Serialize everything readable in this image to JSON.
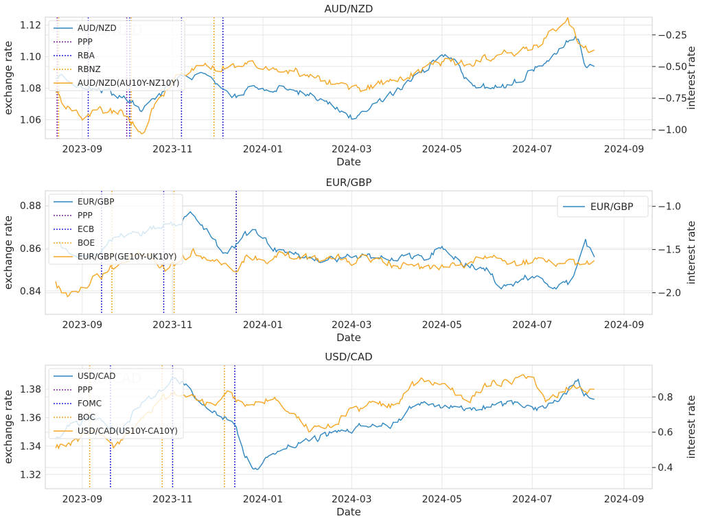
{
  "chart_data": [
    {
      "type": "line",
      "title": "AUD/NZD",
      "xlabel": "Date",
      "ylabel": "exchange rate",
      "ylabel_right": "interest rate",
      "xticks": [
        "2023-09",
        "2023-11",
        "2024-01",
        "2024-03",
        "2024-05",
        "2024-07",
        "2024-09"
      ],
      "yticks_left": [
        "1.06",
        "1.08",
        "1.10",
        "1.12"
      ],
      "yticks_right": [
        "−1.00",
        "−0.75",
        "−0.50",
        "−0.25"
      ],
      "ylim_left": [
        1.048,
        1.125
      ],
      "ylim_right": [
        -1.07,
        -0.11
      ],
      "watermark": "AUD/NZD",
      "grid": true,
      "legend": {
        "position": "top-left",
        "entries": [
          "AUD/NZD",
          "PPP",
          "RBA",
          "RBNZ",
          "AUD/NZD(AU10Y-NZ10Y)"
        ]
      },
      "colors": {
        "fx": "#2e86c1",
        "rate": "#f5a623",
        "bank1": "#1f1fd6",
        "bank2": "#f5a623",
        "ppp": "#7b1fa2"
      },
      "bank1_dates": [
        "2023-09-05",
        "2023-10-03",
        "2023-11-07",
        "2023-12-05"
      ],
      "bank2_dates": [
        "2023-08-16",
        "2023-10-04",
        "2023-11-29"
      ],
      "ppp_dates": [
        "2023-08-15",
        "2023-10-01"
      ],
      "fx_keys": [
        [
          "2023-08-14",
          1.087
        ],
        [
          "2023-08-28",
          1.083
        ],
        [
          "2023-09-10",
          1.08
        ],
        [
          "2023-09-25",
          1.075
        ],
        [
          "2023-10-05",
          1.07
        ],
        [
          "2023-10-12",
          1.066
        ],
        [
          "2023-10-25",
          1.077
        ],
        [
          "2023-11-05",
          1.086
        ],
        [
          "2023-11-20",
          1.087
        ],
        [
          "2023-12-01",
          1.082
        ],
        [
          "2023-12-10",
          1.072
        ],
        [
          "2023-12-25",
          1.08
        ],
        [
          "2024-01-15",
          1.08
        ],
        [
          "2024-02-01",
          1.076
        ],
        [
          "2024-02-15",
          1.07
        ],
        [
          "2024-03-01",
          1.062
        ],
        [
          "2024-03-15",
          1.068
        ],
        [
          "2024-04-01",
          1.08
        ],
        [
          "2024-04-15",
          1.088
        ],
        [
          "2024-05-01",
          1.101
        ],
        [
          "2024-05-10",
          1.097
        ],
        [
          "2024-05-20",
          1.082
        ],
        [
          "2024-06-05",
          1.08
        ],
        [
          "2024-06-15",
          1.082
        ],
        [
          "2024-06-25",
          1.087
        ],
        [
          "2024-07-10",
          1.097
        ],
        [
          "2024-07-25",
          1.11
        ],
        [
          "2024-08-01",
          1.112
        ],
        [
          "2024-08-05",
          1.095
        ],
        [
          "2024-08-12",
          1.094
        ]
      ],
      "rate_keys": [
        [
          "2023-08-14",
          -0.7
        ],
        [
          "2023-08-20",
          -0.82
        ],
        [
          "2023-09-01",
          -0.9
        ],
        [
          "2023-09-20",
          -0.85
        ],
        [
          "2023-10-05",
          -0.92
        ],
        [
          "2023-10-12",
          -1.02
        ],
        [
          "2023-10-20",
          -0.8
        ],
        [
          "2023-11-05",
          -0.55
        ],
        [
          "2023-11-20",
          -0.48
        ],
        [
          "2023-12-01",
          -0.52
        ],
        [
          "2023-12-15",
          -0.48
        ],
        [
          "2024-01-10",
          -0.5
        ],
        [
          "2024-02-01",
          -0.56
        ],
        [
          "2024-02-20",
          -0.65
        ],
        [
          "2024-03-10",
          -0.68
        ],
        [
          "2024-04-01",
          -0.6
        ],
        [
          "2024-04-20",
          -0.52
        ],
        [
          "2024-05-05",
          -0.45
        ],
        [
          "2024-05-20",
          -0.48
        ],
        [
          "2024-06-05",
          -0.42
        ],
        [
          "2024-06-20",
          -0.38
        ],
        [
          "2024-07-05",
          -0.32
        ],
        [
          "2024-07-15",
          -0.2
        ],
        [
          "2024-07-25",
          -0.15
        ],
        [
          "2024-08-01",
          -0.28
        ],
        [
          "2024-08-12",
          -0.38
        ]
      ]
    },
    {
      "type": "line",
      "title": "EUR/GBP",
      "xlabel": "Date",
      "ylabel": "exchange rate",
      "ylabel_right": "interest rate",
      "xticks": [
        "2023-09",
        "2023-11",
        "2024-01",
        "2024-03",
        "2024-05",
        "2024-07",
        "2024-09"
      ],
      "yticks_left": [
        "0.84",
        "0.86",
        "0.88"
      ],
      "yticks_right": [
        "−2.0",
        "−1.5",
        "−1.0"
      ],
      "ylim_left": [
        0.829,
        0.887
      ],
      "ylim_right": [
        -2.25,
        -0.82
      ],
      "grid": true,
      "legend": {
        "position": "top-left",
        "entries": [
          "EUR/GBP",
          "PPP",
          "ECB",
          "BOE",
          "EUR/GBP(GE10Y-UK10Y)"
        ]
      },
      "legend2": {
        "position": "top-right",
        "entries": [
          "EUR/GBP"
        ]
      },
      "colors": {
        "fx": "#2e86c1",
        "rate": "#f5a623",
        "bank1": "#1f1fd6",
        "bank2": "#f5a623",
        "ppp": "#7b1fa2"
      },
      "bank1_dates": [
        "2023-09-14",
        "2023-10-26",
        "2023-12-14"
      ],
      "bank2_dates": [
        "2023-09-21",
        "2023-11-02",
        "2023-12-14"
      ],
      "ppp_dates": [],
      "fx_keys": [
        [
          "2023-08-14",
          0.862
        ],
        [
          "2023-08-25",
          0.857
        ],
        [
          "2023-09-10",
          0.856
        ],
        [
          "2023-09-25",
          0.866
        ],
        [
          "2023-10-10",
          0.867
        ],
        [
          "2023-10-25",
          0.871
        ],
        [
          "2023-11-05",
          0.872
        ],
        [
          "2023-11-15",
          0.876
        ],
        [
          "2023-11-25",
          0.868
        ],
        [
          "2023-12-05",
          0.856
        ],
        [
          "2023-12-15",
          0.863
        ],
        [
          "2023-12-25",
          0.868
        ],
        [
          "2024-01-10",
          0.859
        ],
        [
          "2024-02-01",
          0.855
        ],
        [
          "2024-03-01",
          0.856
        ],
        [
          "2024-04-01",
          0.856
        ],
        [
          "2024-04-20",
          0.856
        ],
        [
          "2024-05-01",
          0.861
        ],
        [
          "2024-05-15",
          0.853
        ],
        [
          "2024-06-01",
          0.85
        ],
        [
          "2024-06-10",
          0.842
        ],
        [
          "2024-06-25",
          0.846
        ],
        [
          "2024-07-05",
          0.848
        ],
        [
          "2024-07-15",
          0.842
        ],
        [
          "2024-07-25",
          0.843
        ],
        [
          "2024-08-01",
          0.852
        ],
        [
          "2024-08-06",
          0.862
        ],
        [
          "2024-08-12",
          0.856
        ]
      ],
      "rate_keys": [
        [
          "2023-08-14",
          -1.9
        ],
        [
          "2023-08-20",
          -2.05
        ],
        [
          "2023-09-05",
          -1.9
        ],
        [
          "2023-09-25",
          -1.65
        ],
        [
          "2023-10-15",
          -1.55
        ],
        [
          "2023-10-28",
          -1.75
        ],
        [
          "2023-11-15",
          -1.5
        ],
        [
          "2023-12-01",
          -1.68
        ],
        [
          "2023-12-10",
          -1.75
        ],
        [
          "2023-12-20",
          -1.6
        ],
        [
          "2024-01-15",
          -1.58
        ],
        [
          "2024-02-15",
          -1.62
        ],
        [
          "2024-03-15",
          -1.62
        ],
        [
          "2024-04-10",
          -1.7
        ],
        [
          "2024-05-01",
          -1.72
        ],
        [
          "2024-06-01",
          -1.62
        ],
        [
          "2024-06-20",
          -1.65
        ],
        [
          "2024-07-10",
          -1.62
        ],
        [
          "2024-07-25",
          -1.68
        ],
        [
          "2024-08-12",
          -1.65
        ]
      ]
    },
    {
      "type": "line",
      "title": "USD/CAD",
      "xlabel": "Date",
      "ylabel": "exchange rate",
      "ylabel_right": "interest rate",
      "xticks": [
        "2023-09",
        "2023-11",
        "2024-01",
        "2024-03",
        "2024-05",
        "2024-07",
        "2024-09"
      ],
      "yticks_left": [
        "1.32",
        "1.34",
        "1.36",
        "1.38"
      ],
      "yticks_right": [
        "0.4",
        "0.6",
        "0.8"
      ],
      "ylim_left": [
        1.31,
        1.397
      ],
      "ylim_right": [
        0.28,
        0.98
      ],
      "watermark": "USD/CAD",
      "grid": true,
      "legend": {
        "position": "top-left",
        "entries": [
          "USD/CAD",
          "PPP",
          "FOMC",
          "BOC",
          "USD/CAD(US10Y-CA10Y)"
        ]
      },
      "colors": {
        "fx": "#2e86c1",
        "rate": "#f5a623",
        "bank1": "#1f1fd6",
        "bank2": "#f5a623",
        "ppp": "#7b1fa2"
      },
      "bank1_dates": [
        "2023-09-20",
        "2023-11-01",
        "2023-12-13"
      ],
      "bank2_dates": [
        "2023-09-06",
        "2023-10-25",
        "2023-12-06"
      ],
      "ppp_dates": [],
      "fx_keys": [
        [
          "2023-08-14",
          1.345
        ],
        [
          "2023-08-25",
          1.355
        ],
        [
          "2023-09-10",
          1.36
        ],
        [
          "2023-09-25",
          1.35
        ],
        [
          "2023-10-10",
          1.368
        ],
        [
          "2023-10-25",
          1.38
        ],
        [
          "2023-11-01",
          1.388
        ],
        [
          "2023-11-10",
          1.382
        ],
        [
          "2023-11-25",
          1.368
        ],
        [
          "2023-12-05",
          1.36
        ],
        [
          "2023-12-12",
          1.357
        ],
        [
          "2023-12-20",
          1.335
        ],
        [
          "2023-12-28",
          1.322
        ],
        [
          "2024-01-10",
          1.338
        ],
        [
          "2024-02-01",
          1.344
        ],
        [
          "2024-02-20",
          1.35
        ],
        [
          "2024-03-10",
          1.355
        ],
        [
          "2024-04-01",
          1.356
        ],
        [
          "2024-04-15",
          1.372
        ],
        [
          "2024-05-01",
          1.368
        ],
        [
          "2024-05-15",
          1.365
        ],
        [
          "2024-06-01",
          1.368
        ],
        [
          "2024-06-20",
          1.37
        ],
        [
          "2024-07-05",
          1.367
        ],
        [
          "2024-07-20",
          1.375
        ],
        [
          "2024-08-01",
          1.388
        ],
        [
          "2024-08-05",
          1.377
        ],
        [
          "2024-08-12",
          1.375
        ]
      ],
      "rate_keys": [
        [
          "2023-08-14",
          0.5
        ],
        [
          "2023-08-25",
          0.55
        ],
        [
          "2023-09-10",
          0.6
        ],
        [
          "2023-09-22",
          0.5
        ],
        [
          "2023-10-10",
          0.65
        ],
        [
          "2023-10-25",
          0.78
        ],
        [
          "2023-11-05",
          0.82
        ],
        [
          "2023-11-20",
          0.78
        ],
        [
          "2023-12-01",
          0.75
        ],
        [
          "2023-12-07",
          0.85
        ],
        [
          "2023-12-15",
          0.77
        ],
        [
          "2024-01-10",
          0.78
        ],
        [
          "2024-02-01",
          0.62
        ],
        [
          "2024-02-15",
          0.65
        ],
        [
          "2024-03-10",
          0.75
        ],
        [
          "2024-04-01",
          0.75
        ],
        [
          "2024-04-15",
          0.9
        ],
        [
          "2024-05-01",
          0.86
        ],
        [
          "2024-05-20",
          0.78
        ],
        [
          "2024-06-05",
          0.9
        ],
        [
          "2024-06-20",
          0.88
        ],
        [
          "2024-07-01",
          0.92
        ],
        [
          "2024-07-10",
          0.8
        ],
        [
          "2024-07-20",
          0.82
        ],
        [
          "2024-08-01",
          0.88
        ],
        [
          "2024-08-12",
          0.82
        ]
      ]
    }
  ]
}
